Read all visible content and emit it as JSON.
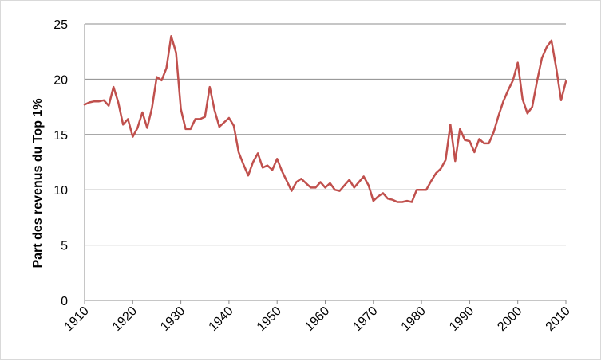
{
  "chart_data": {
    "type": "line",
    "title": "",
    "xlabel": "",
    "ylabel": "Part des revenus du Top 1%",
    "xlim": [
      1910,
      2010
    ],
    "ylim": [
      0,
      25
    ],
    "x_ticks": [
      1910,
      1920,
      1930,
      1940,
      1950,
      1960,
      1970,
      1980,
      1990,
      2000,
      2010
    ],
    "y_ticks": [
      0,
      5,
      10,
      15,
      20,
      25
    ],
    "grid": "horizontal",
    "legend": "none",
    "series": [
      {
        "color": "#c0504d",
        "x": [
          1910,
          1911,
          1912,
          1913,
          1914,
          1915,
          1916,
          1917,
          1918,
          1919,
          1920,
          1921,
          1922,
          1923,
          1924,
          1925,
          1926,
          1927,
          1928,
          1929,
          1930,
          1931,
          1932,
          1933,
          1934,
          1935,
          1936,
          1937,
          1938,
          1939,
          1940,
          1941,
          1942,
          1943,
          1944,
          1945,
          1946,
          1947,
          1948,
          1949,
          1950,
          1951,
          1952,
          1953,
          1954,
          1955,
          1956,
          1957,
          1958,
          1959,
          1960,
          1961,
          1962,
          1963,
          1964,
          1965,
          1966,
          1967,
          1968,
          1969,
          1970,
          1971,
          1972,
          1973,
          1974,
          1975,
          1976,
          1977,
          1978,
          1979,
          1980,
          1981,
          1982,
          1983,
          1984,
          1985,
          1986,
          1987,
          1988,
          1989,
          1990,
          1991,
          1992,
          1993,
          1994,
          1995,
          1996,
          1997,
          1998,
          1999,
          2000,
          2001,
          2002,
          2003,
          2004,
          2005,
          2006,
          2007,
          2008,
          2009,
          2010
        ],
        "values": [
          17.7,
          17.9,
          18.0,
          18.0,
          18.1,
          17.6,
          19.3,
          17.9,
          15.9,
          16.4,
          14.8,
          15.6,
          17.0,
          15.6,
          17.4,
          20.2,
          19.9,
          21.0,
          23.9,
          22.4,
          17.3,
          15.5,
          15.5,
          16.4,
          16.4,
          16.6,
          19.3,
          17.2,
          15.7,
          16.1,
          16.5,
          15.8,
          13.4,
          12.3,
          11.3,
          12.5,
          13.3,
          12.0,
          12.2,
          11.8,
          12.8,
          11.7,
          10.8,
          9.9,
          10.7,
          11.0,
          10.6,
          10.2,
          10.2,
          10.7,
          10.2,
          10.6,
          10.0,
          9.9,
          10.4,
          10.9,
          10.2,
          10.7,
          11.2,
          10.4,
          9.0,
          9.4,
          9.7,
          9.2,
          9.1,
          8.9,
          8.9,
          9.0,
          8.9,
          10.0,
          10.0,
          10.0,
          10.8,
          11.5,
          11.9,
          12.7,
          15.9,
          12.6,
          15.5,
          14.5,
          14.4,
          13.4,
          14.6,
          14.2,
          14.2,
          15.2,
          16.7,
          18.0,
          19.0,
          19.9,
          21.5,
          18.2,
          16.9,
          17.5,
          19.8,
          21.9,
          22.9,
          23.5,
          21.0,
          18.1,
          19.8
        ]
      }
    ]
  }
}
